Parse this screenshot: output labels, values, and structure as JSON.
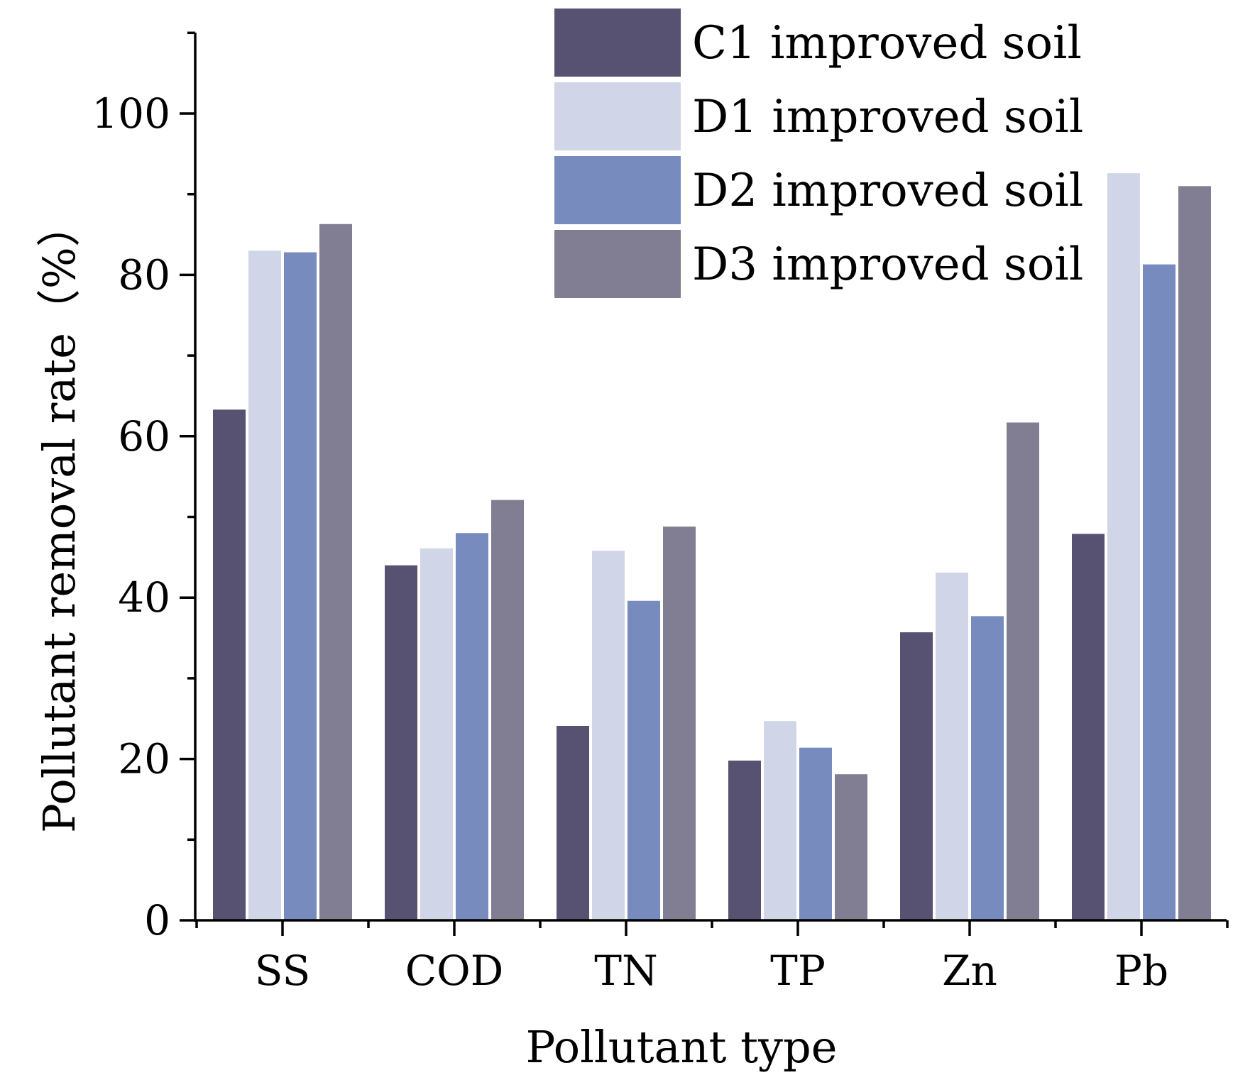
{
  "chart_data": {
    "type": "bar",
    "title": "",
    "xlabel": "Pollutant type",
    "ylabel": "Pollutant removal rate（%）",
    "ylim": [
      0,
      110
    ],
    "yticks": [
      0,
      20,
      40,
      60,
      80,
      100
    ],
    "categories": [
      "SS",
      "COD",
      "TN",
      "TP",
      "Zn",
      "Pb"
    ],
    "series": [
      {
        "name": "C1 improved soil",
        "color": "#575272",
        "values": [
          63.3,
          44.0,
          24.1,
          19.8,
          35.7,
          47.9
        ]
      },
      {
        "name": "D1 improved soil",
        "color": "#d0d6e8",
        "values": [
          83.0,
          46.1,
          45.8,
          24.7,
          43.1,
          92.6
        ]
      },
      {
        "name": "D2 improved soil",
        "color": "#778bbe",
        "values": [
          82.8,
          48.0,
          39.6,
          21.4,
          37.7,
          81.3
        ]
      },
      {
        "name": "D3 improved soil",
        "color": "#817d92",
        "values": [
          86.3,
          52.1,
          48.8,
          18.1,
          61.7,
          91.0
        ]
      }
    ],
    "legend_position": "top-right",
    "grid": false
  }
}
